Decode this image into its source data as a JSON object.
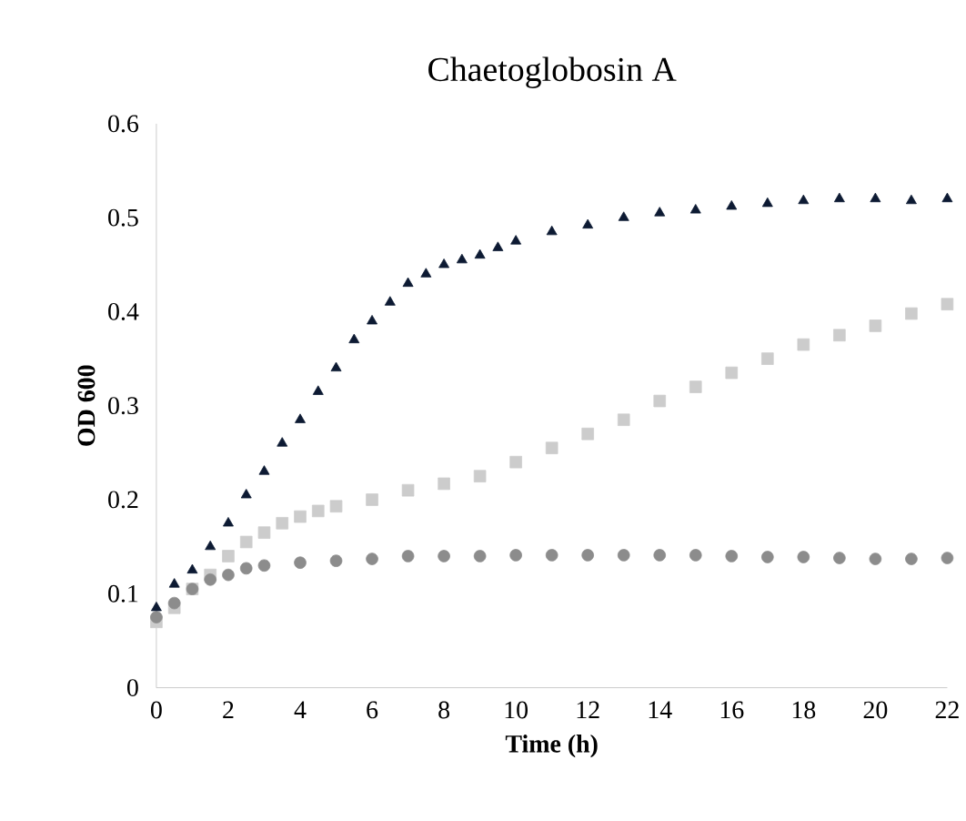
{
  "chart_data": {
    "type": "scatter",
    "title": "Chaetoglobosin A",
    "xlabel": "Time (h)",
    "ylabel": "OD 600",
    "xlim": [
      0,
      22
    ],
    "xticks": [
      0,
      2,
      4,
      6,
      8,
      10,
      12,
      14,
      16,
      18,
      20,
      22
    ],
    "ylim": [
      0,
      0.6
    ],
    "yticks": [
      0,
      0.1,
      0.2,
      0.3,
      0.4,
      0.5,
      0.6
    ],
    "series": [
      {
        "color": "#cccccc",
        "marker": "square",
        "x": [
          0,
          0.5,
          1,
          1.5,
          2,
          2.5,
          3,
          3.5,
          4,
          4.5,
          5,
          6,
          7,
          8,
          9,
          10,
          11,
          12,
          13,
          14,
          15,
          16,
          17,
          18,
          19,
          20,
          21,
          22
        ],
        "values": [
          0.07,
          0.085,
          0.105,
          0.12,
          0.14,
          0.155,
          0.165,
          0.175,
          0.182,
          0.188,
          0.193,
          0.2,
          0.21,
          0.217,
          0.225,
          0.24,
          0.255,
          0.27,
          0.285,
          0.305,
          0.32,
          0.335,
          0.35,
          0.365,
          0.375,
          0.385,
          0.398,
          0.408
        ]
      },
      {
        "color": "#8c8c8c",
        "marker": "circle",
        "x": [
          0,
          0.5,
          1,
          1.5,
          2,
          2.5,
          3,
          4,
          5,
          6,
          7,
          8,
          9,
          10,
          11,
          12,
          13,
          14,
          15,
          16,
          17,
          18,
          19,
          20,
          21,
          22
        ],
        "values": [
          0.075,
          0.09,
          0.105,
          0.115,
          0.12,
          0.127,
          0.13,
          0.133,
          0.135,
          0.137,
          0.14,
          0.14,
          0.14,
          0.141,
          0.141,
          0.141,
          0.141,
          0.141,
          0.141,
          0.14,
          0.139,
          0.139,
          0.138,
          0.137,
          0.137,
          0.138
        ]
      },
      {
        "color": "#0d1a33",
        "marker": "triangle",
        "x": [
          0,
          0.5,
          1,
          1.5,
          2,
          2.5,
          3,
          3.5,
          4,
          4.5,
          5,
          5.5,
          6,
          6.5,
          7,
          7.5,
          8,
          8.5,
          9,
          9.5,
          10,
          11,
          12,
          13,
          14,
          15,
          16,
          17,
          18,
          19,
          20,
          21,
          22
        ],
        "values": [
          0.085,
          0.11,
          0.125,
          0.15,
          0.175,
          0.205,
          0.23,
          0.26,
          0.285,
          0.315,
          0.34,
          0.37,
          0.39,
          0.41,
          0.43,
          0.44,
          0.45,
          0.455,
          0.46,
          0.468,
          0.475,
          0.485,
          0.492,
          0.5,
          0.505,
          0.508,
          0.512,
          0.515,
          0.518,
          0.52,
          0.52,
          0.518,
          0.52
        ]
      }
    ]
  }
}
